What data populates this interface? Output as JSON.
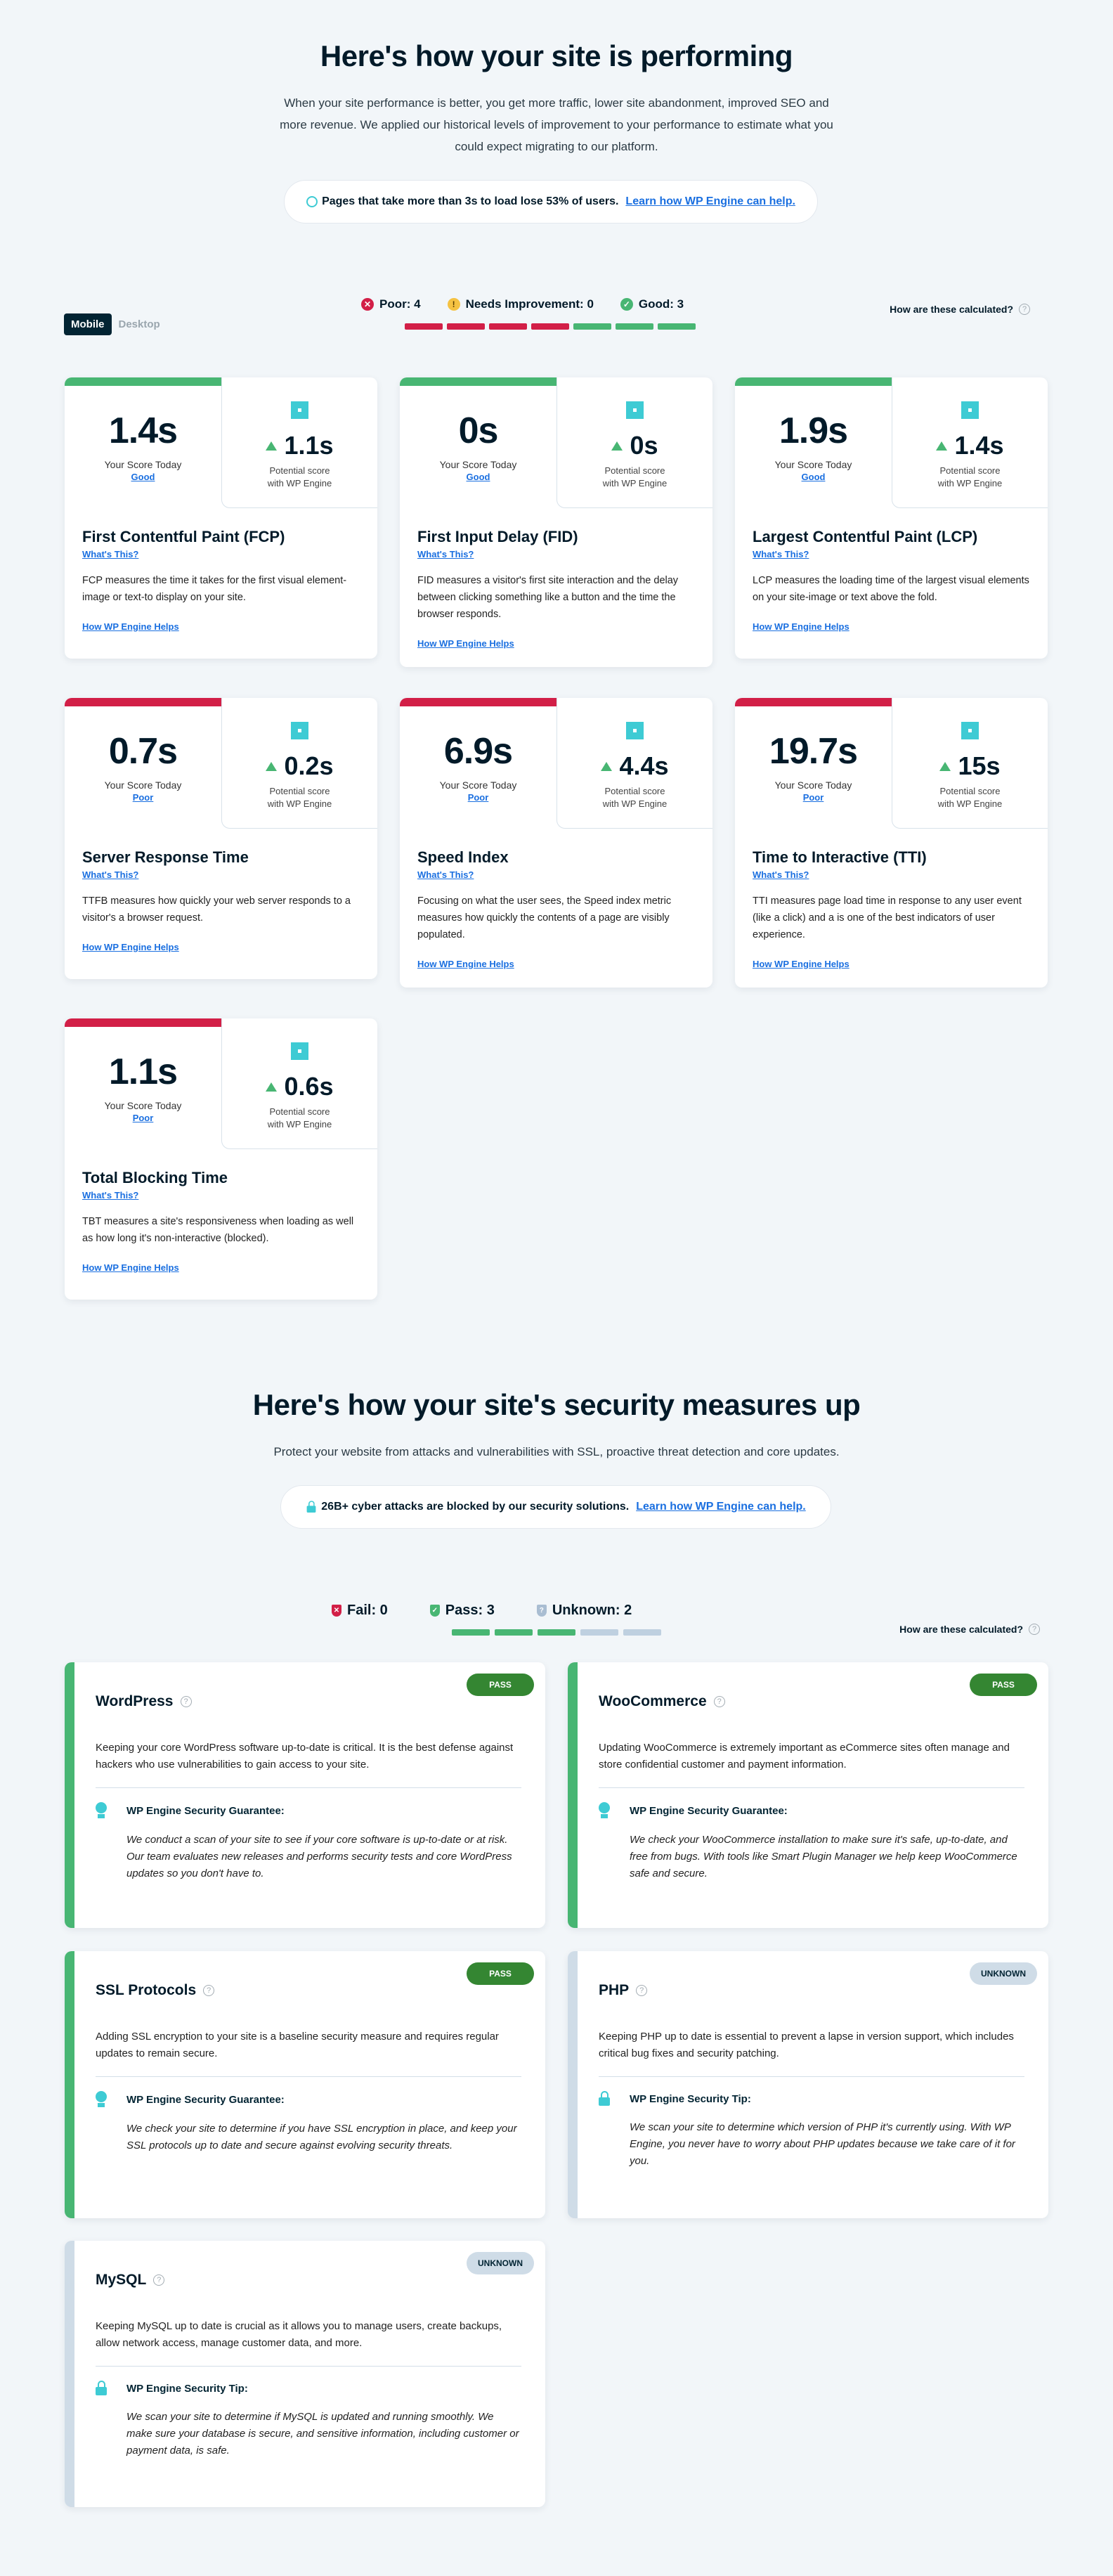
{
  "performance": {
    "title": "Here's how your site is performing",
    "intro": "When your site performance is better, you get more traffic, lower site abandonment, improved SEO and more revenue. We applied our historical levels of improvement to your performance to estimate what you could expect migrating to our platform.",
    "banner": {
      "text": "Pages that take more than 3s to load lose 53% of users.",
      "link": "Learn how WP Engine can help.",
      "icon": "gauge-icon"
    },
    "tabs": {
      "mobile": "Mobile",
      "desktop": "Desktop",
      "active": "Mobile"
    },
    "summary": {
      "poor": "Poor: 4",
      "needs": "Needs Improvement: 0",
      "good": "Good: 3"
    },
    "bars": [
      "poor",
      "poor",
      "poor",
      "poor",
      "good",
      "good",
      "good"
    ],
    "calc": "How are these calculated?",
    "colors": {
      "good": "#48b673",
      "poor": "#d21f47",
      "warn": "#f5c242",
      "link": "#1a6fe0",
      "accent": "#3ecbd4"
    },
    "labels": {
      "score_today": "Your Score Today",
      "potential": "Potential score",
      "with": "with WP Engine",
      "whats_this": "What's This?",
      "how": "How WP Engine Helps"
    },
    "cards": [
      {
        "score": "1.4s",
        "rating": "Good",
        "status": "good",
        "potential": "1.1s",
        "title": "First Contentful Paint (FCP)",
        "desc": "FCP measures the time it takes for the first visual element-image or text-to display on your site."
      },
      {
        "score": "0s",
        "rating": "Good",
        "status": "good",
        "potential": "0s",
        "title": "First Input Delay (FID)",
        "desc": "FID measures a visitor's first site interaction and the delay between clicking something like a button and the time the browser responds."
      },
      {
        "score": "1.9s",
        "rating": "Good",
        "status": "good",
        "potential": "1.4s",
        "title": "Largest Contentful Paint (LCP)",
        "desc": "LCP measures the loading time of the largest visual elements on your site-image or text above the fold."
      },
      {
        "score": "0.7s",
        "rating": "Poor",
        "status": "poor",
        "potential": "0.2s",
        "title": "Server Response Time",
        "desc": "TTFB measures how quickly your web server responds to a visitor's a browser request."
      },
      {
        "score": "6.9s",
        "rating": "Poor",
        "status": "poor",
        "potential": "4.4s",
        "title": "Speed Index",
        "desc": "Focusing on what the user sees, the Speed index metric measures how quickly the contents of a page are visibly populated."
      },
      {
        "score": "19.7s",
        "rating": "Poor",
        "status": "poor",
        "potential": "15s",
        "title": "Time to Interactive (TTI)",
        "desc": "TTI measures page load time in response to any user event (like a click) and a is one of the best indicators of user experience."
      },
      {
        "score": "1.1s",
        "rating": "Poor",
        "status": "poor",
        "potential": "0.6s",
        "title": "Total Blocking Time",
        "desc": "TBT measures a site's responsiveness when loading as well as how long it's non-interactive (blocked)."
      }
    ]
  },
  "security": {
    "title": "Here's how your site's security measures up",
    "intro": "Protect your website from attacks and vulnerabilities with SSL, proactive threat detection and core updates.",
    "banner": {
      "text": "26B+ cyber attacks are blocked by our security solutions.",
      "link": "Learn how WP Engine can help.",
      "icon": "lock-icon"
    },
    "summary": {
      "fail": "Fail: 0",
      "pass": "Pass: 3",
      "unknown": "Unknown: 2"
    },
    "bars": [
      "pass",
      "pass",
      "pass",
      "unknown",
      "unknown"
    ],
    "calc": "How are these calculated?",
    "colors": {
      "pass": "#348632",
      "pass_stripe": "#48b673",
      "unknown": "#cfdce7",
      "fail": "#d21f47"
    },
    "cards": [
      {
        "title": "WordPress",
        "badge": "PASS",
        "status": "pass",
        "desc": "Keeping your core WordPress software up-to-date is critical. It is the best defense against hackers who use vulnerabilities to gain access to your site.",
        "guarantee_title": "WP Engine Security Guarantee:",
        "icon": "award-ribbon-icon",
        "guarantee": "We conduct a scan of your site to see if your core software is up-to-date or at risk. Our team evaluates new releases and performs security tests and core WordPress updates so you don't have to."
      },
      {
        "title": "WooCommerce",
        "badge": "PASS",
        "status": "pass",
        "desc": "Updating WooCommerce is extremely important as eCommerce sites often manage and store confidential customer and payment information.",
        "guarantee_title": "WP Engine Security Guarantee:",
        "icon": "award-ribbon-icon",
        "guarantee": "We check your WooCommerce installation to make sure it's safe, up-to-date, and free from bugs. With tools like Smart Plugin Manager we help keep WooCommerce safe and secure."
      },
      {
        "title": "SSL Protocols",
        "badge": "PASS",
        "status": "pass",
        "desc": "Adding SSL encryption to your site is a baseline security measure and requires regular updates to remain secure.",
        "guarantee_title": "WP Engine Security Guarantee:",
        "icon": "award-ribbon-icon",
        "guarantee": "We check your site to determine if you have SSL encryption in place, and keep your SSL protocols up to date and secure against evolving security threats."
      },
      {
        "title": "PHP",
        "badge": "UNKNOWN",
        "status": "unknown",
        "desc": "Keeping PHP up to date is essential to prevent a lapse in version support, which includes critical bug fixes and security patching.",
        "guarantee_title": "WP Engine Security Tip:",
        "icon": "lock-icon",
        "guarantee": "We scan your site to determine which version of PHP it's currently using. With WP Engine, you never have to worry about PHP updates because we take care of it for you."
      },
      {
        "title": "MySQL",
        "badge": "UNKNOWN",
        "status": "unknown",
        "desc": "Keeping MySQL up to date is crucial as it allows you to manage users, create backups, allow network access, manage customer data, and more.",
        "guarantee_title": "WP Engine Security Tip:",
        "icon": "lock-icon",
        "guarantee": "We scan your site to determine if MySQL is updated and running smoothly. We make sure your database is secure, and sensitive information, including customer or payment data, is safe."
      }
    ]
  }
}
